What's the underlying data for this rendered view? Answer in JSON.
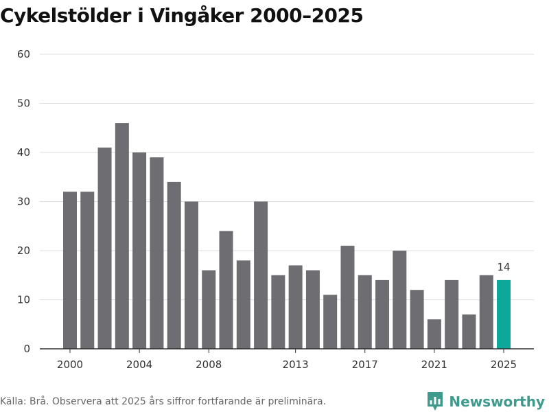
{
  "title": "Cykelstölder i Vingåker 2000–2025",
  "source": "Källa: Brå. Observera att 2025 års siffror fortfarande är preliminära.",
  "brand": {
    "name": "Newsworthy",
    "icon": "newsworthy-logo-icon",
    "color": "#3f9a8e"
  },
  "colors": {
    "bar": "#6e6d72",
    "highlight": "#0ea89b",
    "grid": "#dddddd",
    "axis": "#333333"
  },
  "chart_data": {
    "type": "bar",
    "title": "Cykelstölder i Vingåker 2000–2025",
    "xlabel": "",
    "ylabel": "",
    "categories": [
      "2000",
      "2001",
      "2002",
      "2003",
      "2004",
      "2005",
      "2006",
      "2007",
      "2008",
      "2009",
      "2010",
      "2011",
      "2012",
      "2013",
      "2014",
      "2015",
      "2016",
      "2017",
      "2018",
      "2019",
      "2020",
      "2021",
      "2022",
      "2023",
      "2024",
      "2025"
    ],
    "values": [
      32,
      32,
      41,
      46,
      40,
      39,
      34,
      30,
      16,
      24,
      18,
      30,
      15,
      17,
      16,
      11,
      21,
      15,
      14,
      20,
      12,
      6,
      14,
      7,
      15,
      14
    ],
    "highlight_category": "2025",
    "ylim": [
      0,
      60
    ],
    "yticks": [
      0,
      10,
      20,
      30,
      40,
      50,
      60
    ],
    "xtick_labels": [
      "2000",
      "2004",
      "2008",
      "2013",
      "2017",
      "2021",
      "2025"
    ],
    "data_labels": [
      {
        "category": "2025",
        "text": "14"
      }
    ],
    "grid": true,
    "legend": "none"
  }
}
